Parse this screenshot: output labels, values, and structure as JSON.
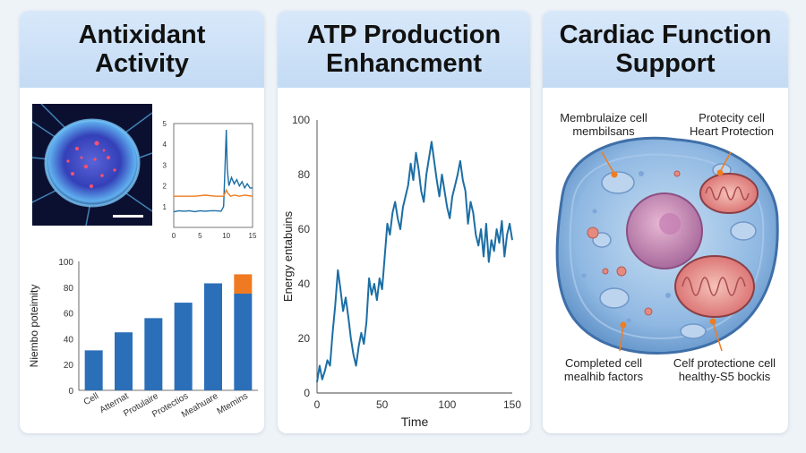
{
  "panels": [
    {
      "title": "Antixidant\nActivity"
    },
    {
      "title": "ATP Production\nEnhancment"
    },
    {
      "title": "Cardiac Function\nSupport"
    }
  ],
  "chart_data": [
    {
      "type": "line",
      "title": "",
      "xlabel": "",
      "ylabel": "",
      "xlim": [
        0,
        15
      ],
      "ylim": [
        0,
        5
      ],
      "xticks": [
        "0",
        "5",
        "10",
        "15"
      ],
      "yticks": [
        "1",
        "2",
        "3",
        "4",
        "5"
      ],
      "series": [
        {
          "name": "blue",
          "x": [
            0,
            1,
            2,
            3,
            4,
            5,
            6,
            7,
            8,
            9,
            9.5,
            9.8,
            10,
            10.2,
            10.5,
            11,
            11.5,
            12,
            12.5,
            13,
            13.5,
            14,
            14.5,
            15
          ],
          "values": [
            0.75,
            0.8,
            0.78,
            0.8,
            0.76,
            0.8,
            0.78,
            0.8,
            0.8,
            0.78,
            1.0,
            3.2,
            4.7,
            2.8,
            2.0,
            2.4,
            2.1,
            2.3,
            2.0,
            2.2,
            1.9,
            2.1,
            1.9,
            1.9
          ]
        },
        {
          "name": "orange",
          "x": [
            0,
            2,
            4,
            6,
            8,
            9.5,
            10,
            10.3,
            10.8,
            11.5,
            12.5,
            13.5,
            15
          ],
          "values": [
            1.5,
            1.5,
            1.5,
            1.55,
            1.5,
            1.5,
            1.8,
            1.65,
            1.5,
            1.55,
            1.5,
            1.55,
            1.5
          ]
        }
      ]
    },
    {
      "type": "bar",
      "title": "",
      "xlabel": "",
      "ylabel": "Niembo poteimity",
      "ylim": [
        0,
        100
      ],
      "yticks": [
        "0",
        "20",
        "40",
        "60",
        "80",
        "100"
      ],
      "categories": [
        "Cell",
        "Atternat",
        "Protulaire",
        "Protectios",
        "Meahuare",
        "Mtemins"
      ],
      "series": [
        {
          "name": "base",
          "values": [
            31,
            45,
            56,
            68,
            83,
            75
          ]
        },
        {
          "name": "extra",
          "values": [
            0,
            0,
            0,
            0,
            0,
            15
          ]
        }
      ]
    },
    {
      "type": "line",
      "title": "",
      "xlabel": "Time",
      "ylabel": "Energy entabuins",
      "xlim": [
        0,
        150
      ],
      "ylim": [
        0,
        100
      ],
      "xticks": [
        "0",
        "50",
        "100",
        "150"
      ],
      "yticks": [
        "0",
        "20",
        "40",
        "60",
        "80",
        "100"
      ],
      "series": [
        {
          "name": "energy",
          "x": [
            0,
            2,
            4,
            6,
            8,
            10,
            12,
            14,
            16,
            18,
            20,
            22,
            24,
            26,
            28,
            30,
            32,
            34,
            36,
            38,
            40,
            42,
            44,
            46,
            48,
            50,
            52,
            54,
            56,
            58,
            60,
            62,
            64,
            66,
            68,
            70,
            72,
            74,
            76,
            78,
            80,
            82,
            84,
            86,
            88,
            90,
            92,
            94,
            96,
            98,
            100,
            102,
            104,
            106,
            108,
            110,
            112,
            114,
            116,
            118,
            120,
            122,
            124,
            126,
            128,
            130,
            132,
            134,
            136,
            138,
            140,
            142,
            144,
            146,
            148,
            150
          ],
          "values": [
            4,
            10,
            5,
            8,
            12,
            10,
            22,
            32,
            45,
            38,
            30,
            35,
            28,
            20,
            14,
            10,
            17,
            22,
            18,
            26,
            42,
            36,
            40,
            34,
            42,
            38,
            50,
            62,
            58,
            66,
            70,
            64,
            60,
            68,
            72,
            76,
            84,
            78,
            88,
            82,
            74,
            70,
            80,
            86,
            92,
            85,
            78,
            72,
            80,
            74,
            68,
            64,
            72,
            76,
            80,
            85,
            78,
            74,
            62,
            70,
            66,
            58,
            54,
            60,
            50,
            62,
            48,
            56,
            52,
            60,
            55,
            63,
            50,
            58,
            62,
            56
          ]
        }
      ]
    }
  ],
  "cell_labels": [
    {
      "text": "Membrulaize cell\nmembilsans"
    },
    {
      "text": "Protecity cell\nHeart Protection"
    },
    {
      "text": "Completed cell\nmealhib factors"
    },
    {
      "text": "Celf protectione cell\nhealthy-S5 bockis"
    }
  ],
  "colors": {
    "line_blue": "#1c6ea4",
    "bar_blue": "#2b6fb8",
    "bar_orange": "#f07a22",
    "orange_line": "#ef7d21",
    "header_bg": "#cfe2f7"
  }
}
